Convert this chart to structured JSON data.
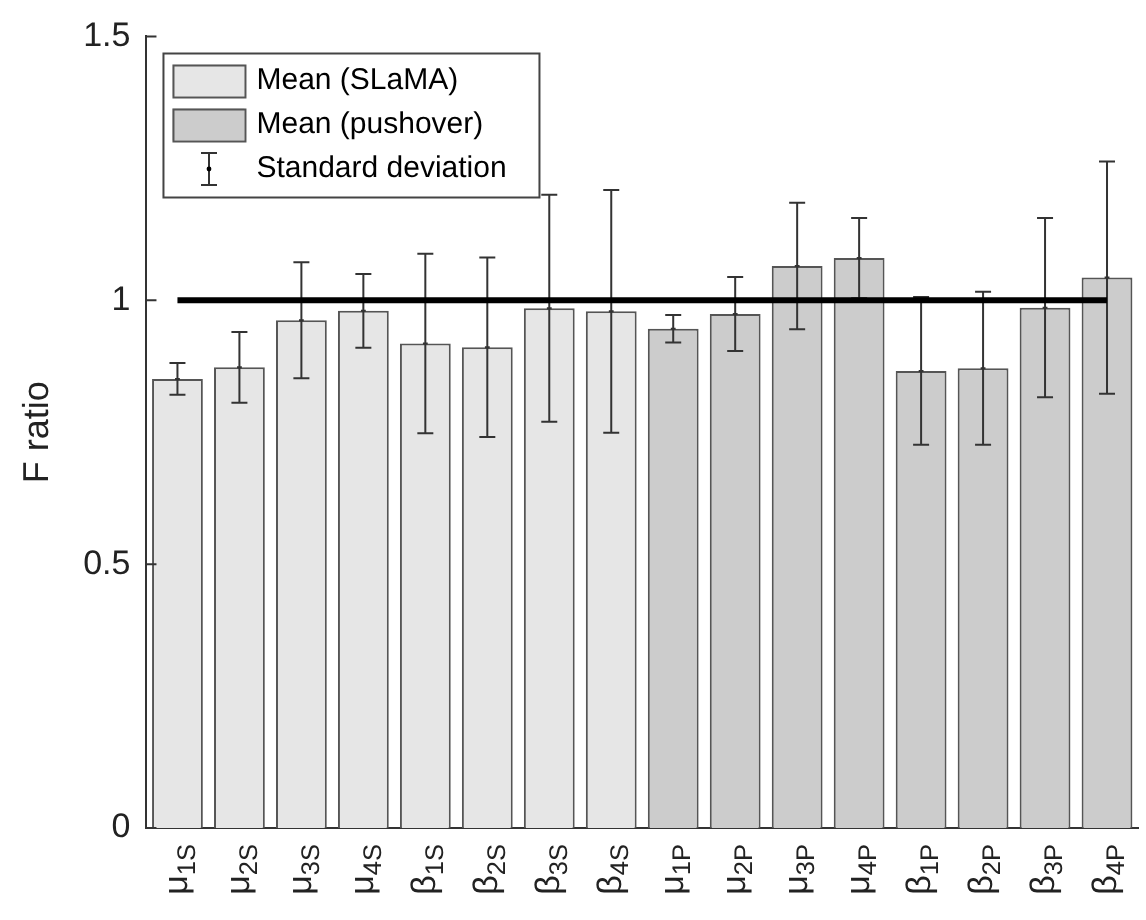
{
  "chart_data": {
    "type": "bar",
    "ylabel": "F ratio",
    "categories": [
      "μ$_{1S}$",
      "μ$_{2S}$",
      "μ$_{3S}$",
      "μ$_{4S}$",
      "β$_{1S}$",
      "β$_{2S}$",
      "β$_{3S}$",
      "β$_{4S}$",
      "μ$_{1P}$",
      "μ$_{2P}$",
      "μ$_{3P}$",
      "μ$_{4P}$",
      "β$_{1P}$",
      "β$_{2P}$",
      "β$_{3P}$",
      "β$_{4P}$"
    ],
    "series": [
      {
        "name": "Mean (SLaMA)",
        "color": "#e6e6e6",
        "values": [
          0.851,
          0.873,
          0.962,
          0.98,
          0.918,
          0.911,
          0.985,
          0.979,
          null,
          null,
          null,
          null,
          null,
          null,
          null,
          null
        ],
        "errors": [
          0.03,
          0.067,
          0.11,
          0.07,
          0.17,
          0.17,
          0.215,
          0.23,
          null,
          null,
          null,
          null,
          null,
          null,
          null,
          null
        ]
      },
      {
        "name": "Mean (pushover)",
        "color": "#cccccc",
        "values": [
          null,
          null,
          null,
          null,
          null,
          null,
          null,
          null,
          0.946,
          0.974,
          1.065,
          1.08,
          0.866,
          0.871,
          0.986,
          1.043
        ],
        "errors": [
          null,
          null,
          null,
          null,
          null,
          null,
          null,
          null,
          0.026,
          0.07,
          0.12,
          0.076,
          0.14,
          0.145,
          0.17,
          0.22
        ]
      }
    ],
    "ylim": [
      0,
      1.5
    ],
    "yticks": [
      0,
      0.5,
      1,
      1.5
    ],
    "grid": false,
    "legend": "top left",
    "ref_lines": [
      {
        "axis": "y",
        "value": 1,
        "color": "#000000"
      }
    ],
    "annotations": [
      "Standard deviation"
    ]
  }
}
